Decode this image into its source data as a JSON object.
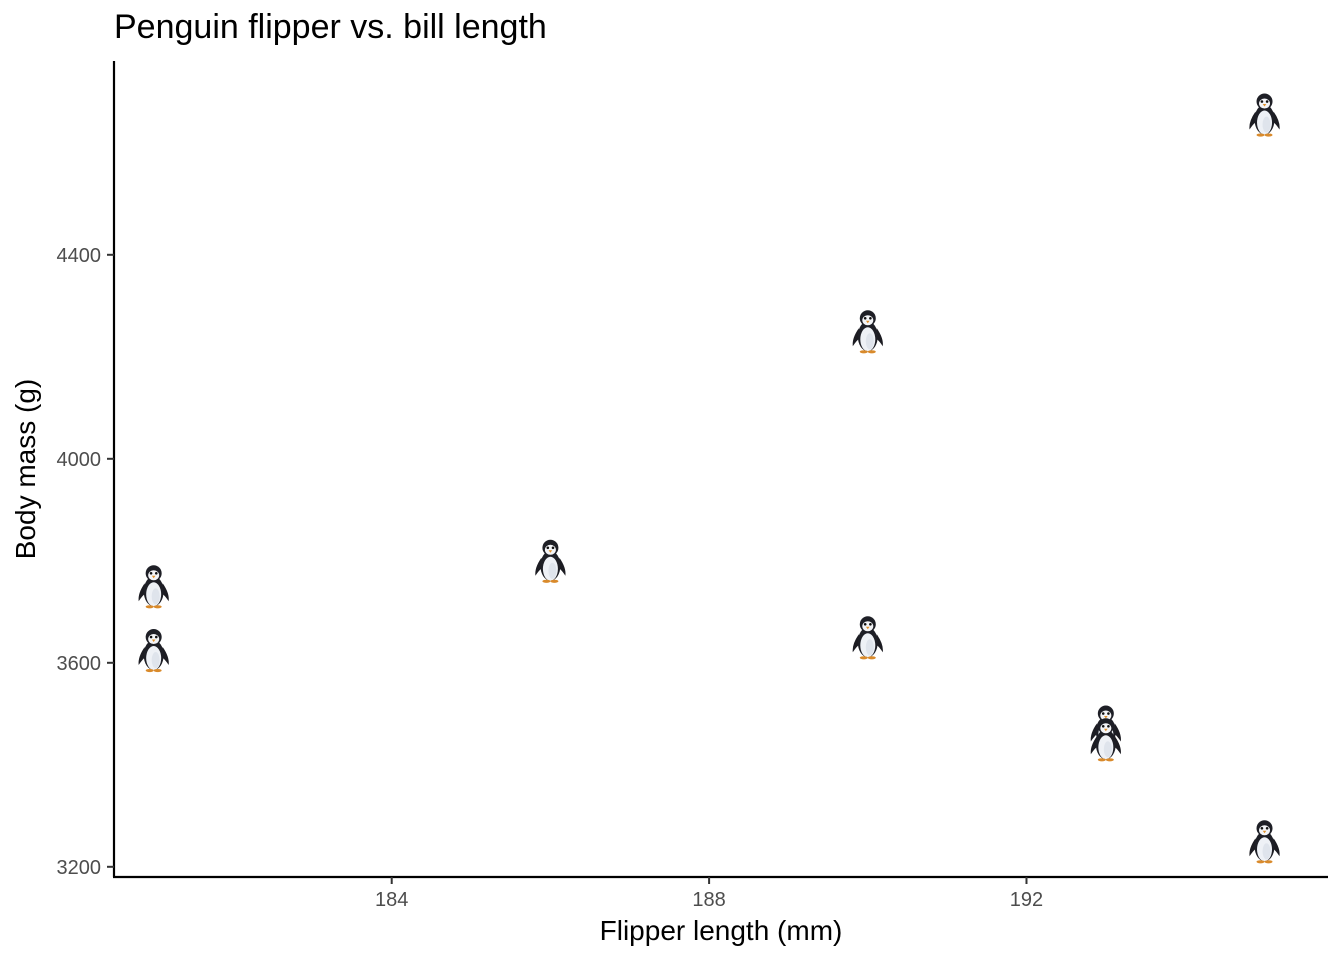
{
  "chart_data": {
    "type": "scatter",
    "title": "Penguin flipper vs. bill length",
    "xlabel": "Flipper length (mm)",
    "ylabel": "Body mass (g)",
    "xlim": [
      180.5,
      195.8
    ],
    "ylim": [
      3180,
      4780
    ],
    "x_ticks": [
      184,
      188,
      192
    ],
    "y_ticks": [
      3200,
      3600,
      4000,
      4400
    ],
    "x_tick_labels": [
      "184",
      "188",
      "192"
    ],
    "y_tick_labels": [
      "3200",
      "3600",
      "4000",
      "4400"
    ],
    "grid": false,
    "marker": "penguin-icon",
    "points": [
      {
        "x": 181,
        "y": 3750
      },
      {
        "x": 181,
        "y": 3625
      },
      {
        "x": 186,
        "y": 3800
      },
      {
        "x": 190,
        "y": 4250
      },
      {
        "x": 190,
        "y": 3650
      },
      {
        "x": 193,
        "y": 3475
      },
      {
        "x": 193,
        "y": 3450
      },
      {
        "x": 195,
        "y": 4675
      },
      {
        "x": 195,
        "y": 3250
      }
    ]
  }
}
